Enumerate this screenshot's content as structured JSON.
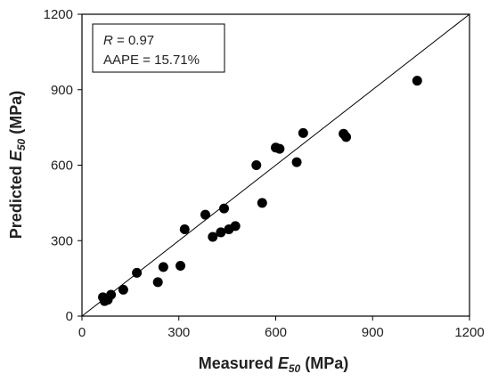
{
  "chart_data": {
    "type": "scatter",
    "xlabel": {
      "prefix": "Measured ",
      "var": "E",
      "sub": "50",
      "suffix": " (MPa)"
    },
    "ylabel": {
      "prefix": "Predicted ",
      "var": "E",
      "sub": "50",
      "suffix": " (MPa)"
    },
    "xlim": [
      0,
      1200
    ],
    "ylim": [
      0,
      1200
    ],
    "x_ticks": [
      0,
      300,
      600,
      900,
      1200
    ],
    "y_ticks": [
      0,
      300,
      600,
      900,
      1200
    ],
    "grid": false,
    "reference_line": {
      "from": [
        0,
        0
      ],
      "to": [
        1200,
        1200
      ]
    },
    "annotation": {
      "r_label": "R",
      "r_value": " = 0.97",
      "aape": "AAPE = 15.71%"
    },
    "marker_color": "#000000",
    "points": [
      {
        "x": 65,
        "y": 75
      },
      {
        "x": 70,
        "y": 60
      },
      {
        "x": 80,
        "y": 65
      },
      {
        "x": 90,
        "y": 85
      },
      {
        "x": 128,
        "y": 105
      },
      {
        "x": 170,
        "y": 172
      },
      {
        "x": 235,
        "y": 135
      },
      {
        "x": 252,
        "y": 195
      },
      {
        "x": 305,
        "y": 200
      },
      {
        "x": 318,
        "y": 345
      },
      {
        "x": 382,
        "y": 403
      },
      {
        "x": 405,
        "y": 315
      },
      {
        "x": 430,
        "y": 333
      },
      {
        "x": 440,
        "y": 428
      },
      {
        "x": 455,
        "y": 345
      },
      {
        "x": 475,
        "y": 358
      },
      {
        "x": 540,
        "y": 600
      },
      {
        "x": 558,
        "y": 450
      },
      {
        "x": 600,
        "y": 670
      },
      {
        "x": 612,
        "y": 665
      },
      {
        "x": 665,
        "y": 612
      },
      {
        "x": 685,
        "y": 728
      },
      {
        "x": 810,
        "y": 725
      },
      {
        "x": 818,
        "y": 712
      },
      {
        "x": 1038,
        "y": 936
      }
    ]
  }
}
